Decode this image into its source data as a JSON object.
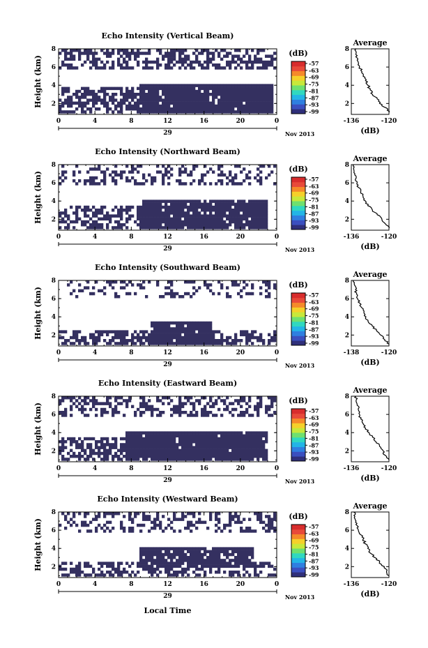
{
  "colors": {
    "echo": "#343060",
    "colorbar": [
      "#2f2f7a",
      "#3b4fbf",
      "#2f7fe0",
      "#23b5e6",
      "#30d8c0",
      "#6fe06f",
      "#c8e83a",
      "#f5d02a",
      "#f58a2a",
      "#e84a3a",
      "#d82d2d"
    ]
  },
  "footer": {
    "xlabel": "Local Time"
  },
  "chart_data": [
    {
      "type": "heatmap",
      "title": "Echo Intensity (Vertical Beam)",
      "ylabel": "Height (km)",
      "x_ticks": [
        "0",
        "4",
        "8",
        "12",
        "16",
        "20",
        "0"
      ],
      "y_ticks": [
        "8",
        "6",
        "4",
        "2"
      ],
      "date_label": "29",
      "month_label": "Nov 2013",
      "xlim": [
        0,
        24
      ],
      "ylim": [
        0.8,
        8
      ],
      "colorbar": {
        "unit": "(dB)",
        "ticks": [
          "-57",
          "-63",
          "-69",
          "-75",
          "-81",
          "-87",
          "-93",
          "-99"
        ]
      },
      "profile": {
        "title": "Average",
        "xlabel": "(dB)",
        "x_ticks": [
          "-136",
          "-120"
        ],
        "y_ticks": [
          "8",
          "6",
          "4",
          "2"
        ],
        "xlim": [
          -136,
          -120
        ],
        "heights": [
          1,
          1.5,
          2,
          2.5,
          3,
          3.5,
          4,
          4.5,
          5,
          5.5,
          6,
          6.5,
          7,
          7.5,
          8
        ],
        "values": [
          -120,
          -121,
          -124,
          -125,
          -127,
          -128,
          -129,
          -130,
          -131,
          -131.5,
          -132.5,
          -133,
          -133.5,
          -134,
          -134
        ]
      },
      "echo_regions": [
        {
          "t0": 0,
          "t1": 24,
          "h0": 5.6,
          "h1": 8,
          "density": 0.55
        },
        {
          "t0": 9,
          "t1": 23.5,
          "h0": 1,
          "h1": 4,
          "density": 0.95
        },
        {
          "t0": 0,
          "t1": 9,
          "h0": 1,
          "h1": 3.8,
          "density": 0.6
        }
      ]
    },
    {
      "type": "heatmap",
      "title": "Echo Intensity (Northward Beam)",
      "ylabel": "Height (km)",
      "x_ticks": [
        "0",
        "4",
        "8",
        "12",
        "16",
        "20",
        "0"
      ],
      "y_ticks": [
        "8",
        "6",
        "4",
        "2"
      ],
      "date_label": "29",
      "month_label": "Nov 2013",
      "xlim": [
        0,
        24
      ],
      "ylim": [
        0.8,
        8
      ],
      "colorbar": {
        "unit": "(dB)",
        "ticks": [
          "-57",
          "-63",
          "-69",
          "-75",
          "-81",
          "-87",
          "-93",
          "-99"
        ]
      },
      "profile": {
        "title": "Average",
        "xlabel": "(dB)",
        "x_ticks": [
          "-136",
          "-120"
        ],
        "y_ticks": [
          "8",
          "6",
          "4",
          "2"
        ],
        "xlim": [
          -136,
          -120
        ],
        "heights": [
          1,
          1.5,
          2,
          2.5,
          3,
          3.5,
          4,
          4.5,
          5,
          5.5,
          6,
          6.5,
          7,
          7.5,
          8
        ],
        "values": [
          -120,
          -121.5,
          -123,
          -125,
          -127,
          -129,
          -130,
          -131,
          -132,
          -133,
          -133.5,
          -134,
          -134.5,
          -135,
          -135
        ]
      },
      "echo_regions": [
        {
          "t0": 0,
          "t1": 24,
          "h0": 5.6,
          "h1": 8,
          "density": 0.35
        },
        {
          "t0": 9.3,
          "t1": 23,
          "h0": 1,
          "h1": 4,
          "density": 0.95
        },
        {
          "t0": 0,
          "t1": 9.3,
          "h0": 1,
          "h1": 3.6,
          "density": 0.55
        }
      ]
    },
    {
      "type": "heatmap",
      "title": "Echo Intensity (Southward Beam)",
      "ylabel": "Height (km)",
      "x_ticks": [
        "0",
        "4",
        "8",
        "12",
        "16",
        "20",
        "0"
      ],
      "y_ticks": [
        "8",
        "6",
        "4",
        "2"
      ],
      "date_label": "29",
      "month_label": "Nov 2013",
      "xlim": [
        0,
        24
      ],
      "ylim": [
        0.8,
        8
      ],
      "colorbar": {
        "unit": "(dB)",
        "ticks": [
          "-57",
          "-63",
          "-69",
          "-75",
          "-81",
          "-87",
          "-93",
          "-99"
        ]
      },
      "profile": {
        "title": "Average",
        "xlabel": "(dB)",
        "x_ticks": [
          "-138",
          "-120"
        ],
        "y_ticks": [
          "8",
          "6",
          "4",
          "2"
        ],
        "xlim": [
          -138,
          -120
        ],
        "heights": [
          1,
          1.5,
          2,
          2.5,
          3,
          3.5,
          4,
          4.5,
          5,
          5.5,
          6,
          6.5,
          7,
          7.5,
          8
        ],
        "values": [
          -120,
          -122,
          -124,
          -126,
          -128,
          -130,
          -131,
          -132,
          -133,
          -134,
          -135,
          -135.5,
          -136,
          -136.5,
          -137
        ]
      },
      "echo_regions": [
        {
          "t0": 0,
          "t1": 24,
          "h0": 6.2,
          "h1": 8,
          "density": 0.25
        },
        {
          "t0": 10,
          "t1": 17,
          "h0": 1,
          "h1": 3.6,
          "density": 0.95
        },
        {
          "t0": 0,
          "t1": 24,
          "h0": 1,
          "h1": 2.5,
          "density": 0.6
        }
      ]
    },
    {
      "type": "heatmap",
      "title": "Echo Intensity (Eastward Beam)",
      "ylabel": "Height (km)",
      "x_ticks": [
        "0",
        "4",
        "8",
        "12",
        "16",
        "20",
        "0"
      ],
      "y_ticks": [
        "8",
        "6",
        "4",
        "2"
      ],
      "date_label": "29",
      "month_label": "Nov 2013",
      "xlim": [
        0,
        24
      ],
      "ylim": [
        0.8,
        8
      ],
      "colorbar": {
        "unit": "(dB)",
        "ticks": [
          "-57",
          "-63",
          "-69",
          "-75",
          "-81",
          "-87",
          "-93",
          "-99"
        ]
      },
      "profile": {
        "title": "Average",
        "xlabel": "(dB)",
        "x_ticks": [
          "-136",
          "-120"
        ],
        "y_ticks": [
          "8",
          "6",
          "4",
          "2"
        ],
        "xlim": [
          -136,
          -120
        ],
        "heights": [
          1,
          1.5,
          2,
          2.5,
          3,
          3.5,
          4,
          4.5,
          5,
          5.5,
          6,
          6.5,
          7,
          7.5,
          8
        ],
        "values": [
          -120,
          -121.5,
          -122.5,
          -124,
          -125.5,
          -127,
          -128.5,
          -130,
          -131,
          -132,
          -132.5,
          -133,
          -133.5,
          -134,
          -134
        ]
      },
      "echo_regions": [
        {
          "t0": 0,
          "t1": 24,
          "h0": 5.8,
          "h1": 8,
          "density": 0.45
        },
        {
          "t0": 7.5,
          "t1": 23,
          "h0": 1,
          "h1": 4,
          "density": 0.95
        },
        {
          "t0": 0,
          "t1": 7.5,
          "h0": 1,
          "h1": 3.4,
          "density": 0.55
        }
      ]
    },
    {
      "type": "heatmap",
      "title": "Echo Intensity (Westward Beam)",
      "ylabel": "Height (km)",
      "x_ticks": [
        "0",
        "4",
        "8",
        "12",
        "16",
        "20",
        "0"
      ],
      "y_ticks": [
        "8",
        "6",
        "4",
        "2"
      ],
      "date_label": "29",
      "month_label": "Nov 2013",
      "xlim": [
        0,
        24
      ],
      "ylim": [
        0.8,
        8
      ],
      "colorbar": {
        "unit": "(dB)",
        "ticks": [
          "-57",
          "-63",
          "-69",
          "-75",
          "-81",
          "-87",
          "-93",
          "-99"
        ]
      },
      "profile": {
        "title": "Average",
        "xlabel": "(dB)",
        "x_ticks": [
          "-136",
          "-120"
        ],
        "y_ticks": [
          "8",
          "6",
          "4",
          "2"
        ],
        "xlim": [
          -136,
          -120
        ],
        "heights": [
          1,
          1.5,
          2,
          2.5,
          3,
          3.5,
          4,
          4.5,
          5,
          5.5,
          6,
          6.5,
          7,
          7.5,
          8
        ],
        "values": [
          -120,
          -121,
          -122,
          -124,
          -126,
          -128,
          -129,
          -130,
          -131,
          -132,
          -133,
          -133.5,
          -134,
          -134.5,
          -135
        ]
      },
      "echo_regions": [
        {
          "t0": 0,
          "t1": 24,
          "h0": 5.8,
          "h1": 8,
          "density": 0.35
        },
        {
          "t0": 9,
          "t1": 21.5,
          "h0": 1.8,
          "h1": 4.2,
          "density": 0.9
        },
        {
          "t0": 0,
          "t1": 24,
          "h0": 1,
          "h1": 2.6,
          "density": 0.5
        }
      ]
    }
  ]
}
